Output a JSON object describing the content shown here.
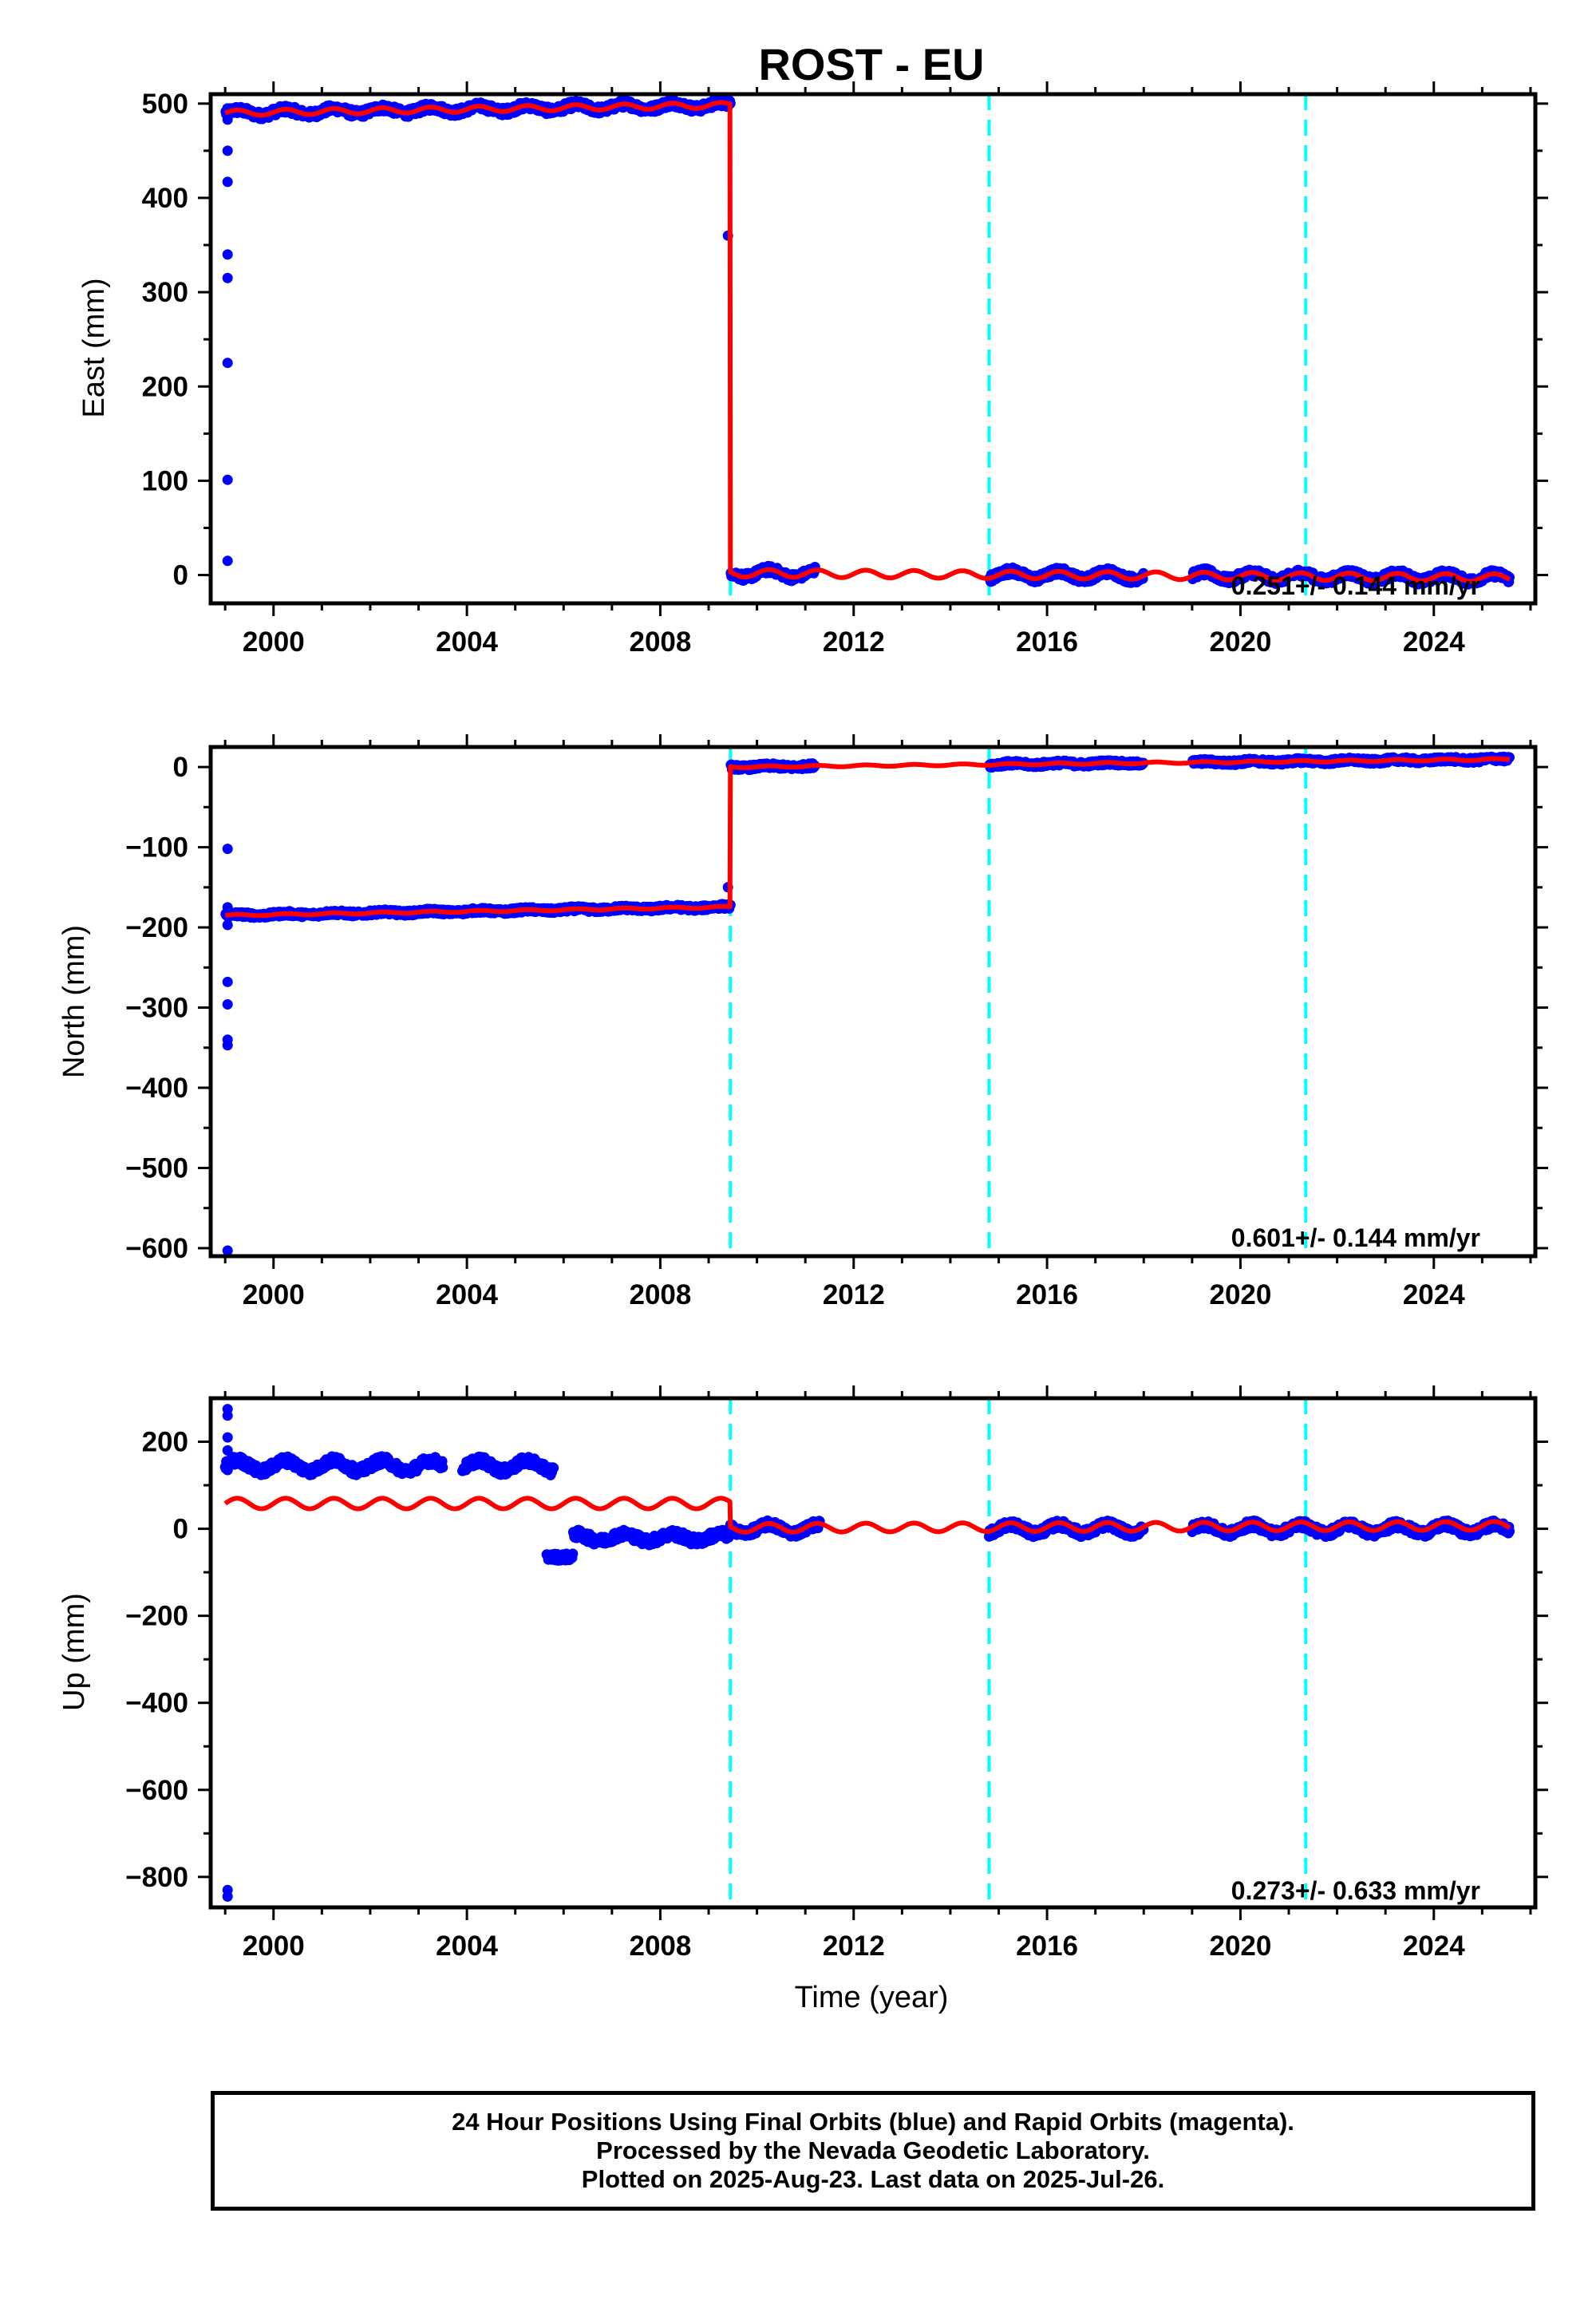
{
  "title": "ROST - EU",
  "xlabel": "Time (year)",
  "caption": {
    "line1": "24 Hour Positions Using Final Orbits (blue) and Rapid Orbits (magenta).",
    "line2": "Processed by the Nevada Geodetic Laboratory.",
    "line3": "Plotted on 2025-Aug-23. Last data on 2025-Jul-26."
  },
  "colors": {
    "data": "#0000ff",
    "model": "#ff0000",
    "events": "#00ffff",
    "axes": "#000000"
  },
  "chart_data": [
    {
      "type": "scatter",
      "panel": "east",
      "ylabel": "East (mm)",
      "xlim": [
        1998.7,
        2026.1
      ],
      "ylim": [
        -30,
        510
      ],
      "xticks": [
        2000,
        2004,
        2008,
        2012,
        2016,
        2020,
        2024
      ],
      "yticks": [
        0,
        100,
        200,
        300,
        400,
        500
      ],
      "rate_text": "0.251+/- 0.144 mm/yr",
      "events": [
        2009.45,
        2014.8,
        2021.35
      ],
      "outliers": [
        [
          1999.05,
          15
        ],
        [
          1999.05,
          101
        ],
        [
          1999.05,
          225
        ],
        [
          1999.05,
          315
        ],
        [
          1999.05,
          340
        ],
        [
          1999.05,
          417
        ],
        [
          1999.05,
          450
        ],
        [
          1999.05,
          483
        ],
        [
          2009.4,
          360
        ]
      ],
      "segments": [
        {
          "start": 1999.0,
          "end": 2009.45,
          "offset": 490,
          "rate": 0.8,
          "amp": 3,
          "noise": 4,
          "gaps": []
        },
        {
          "start": 2009.45,
          "end": 2025.57,
          "offset": 2,
          "rate": -0.3,
          "amp": 4,
          "noise": 4,
          "gaps": [
            [
              2011.2,
              2014.8
            ],
            [
              2018.0,
              2019.0
            ]
          ]
        }
      ]
    },
    {
      "type": "scatter",
      "panel": "north",
      "ylabel": "North (mm)",
      "xlim": [
        1998.7,
        2026.1
      ],
      "ylim": [
        -610,
        25
      ],
      "xticks": [
        2000,
        2004,
        2008,
        2012,
        2016,
        2020,
        2024
      ],
      "yticks": [
        0,
        -100,
        -200,
        -300,
        -400,
        -500,
        -600
      ],
      "rate_text": "0.601+/- 0.144 mm/yr",
      "events": [
        2009.45,
        2014.8,
        2021.35
      ],
      "outliers": [
        [
          1999.05,
          -102
        ],
        [
          1999.05,
          -175
        ],
        [
          1999.05,
          -197
        ],
        [
          1999.05,
          -268
        ],
        [
          1999.05,
          -296
        ],
        [
          1999.05,
          -340
        ],
        [
          1999.05,
          -347
        ],
        [
          1999.05,
          -603
        ],
        [
          2009.4,
          -150
        ]
      ],
      "segments": [
        {
          "start": 1999.0,
          "end": 2009.45,
          "offset": -185,
          "rate": 1.0,
          "amp": 1,
          "noise": 3,
          "gaps": []
        },
        {
          "start": 2009.45,
          "end": 2025.57,
          "offset": 0,
          "rate": 0.6,
          "amp": 1,
          "noise": 3,
          "gaps": [
            [
              2011.2,
              2014.8
            ],
            [
              2018.0,
              2019.0
            ]
          ]
        }
      ]
    },
    {
      "type": "scatter",
      "panel": "up",
      "ylabel": "Up (mm)",
      "xlim": [
        1998.7,
        2026.1
      ],
      "ylim": [
        -870,
        300
      ],
      "xticks": [
        2000,
        2004,
        2008,
        2012,
        2016,
        2020,
        2024
      ],
      "yticks": [
        200,
        0,
        -200,
        -400,
        -600,
        -800
      ],
      "rate_text": "0.273+/- 0.633 mm/yr",
      "events": [
        2009.45,
        2014.8,
        2021.35
      ],
      "outliers": [
        [
          1999.05,
          275
        ],
        [
          1999.05,
          260
        ],
        [
          1999.05,
          210
        ],
        [
          1999.05,
          180
        ],
        [
          1999.05,
          135
        ],
        [
          1999.05,
          -830
        ],
        [
          1999.05,
          -845
        ]
      ],
      "segments": [
        {
          "start": 1999.0,
          "end": 2009.45,
          "offset": 58,
          "rate": 0.0,
          "amp": 12,
          "noise": 0,
          "gaps": []
        },
        {
          "start": 2009.45,
          "end": 2025.57,
          "offset": 2,
          "rate": 0.3,
          "amp": 10,
          "noise": 0,
          "gaps": []
        }
      ],
      "data_clusters": [
        {
          "start": 1999.0,
          "end": 2005.8,
          "level": 145,
          "amp": 12,
          "noise": 10,
          "gaps": [
            [
              2003.5,
              2003.9
            ]
          ]
        },
        {
          "start": 2005.65,
          "end": 2006.2,
          "level": -65,
          "amp": 0,
          "noise": 8,
          "gaps": []
        },
        {
          "start": 2006.2,
          "end": 2009.45,
          "level": -20,
          "amp": 8,
          "noise": 10,
          "gaps": []
        },
        {
          "start": 2009.45,
          "end": 2025.57,
          "level": 0,
          "amp": 10,
          "noise": 9,
          "gaps": [
            [
              2011.3,
              2014.8
            ],
            [
              2018.0,
              2019.0
            ]
          ]
        }
      ]
    }
  ]
}
